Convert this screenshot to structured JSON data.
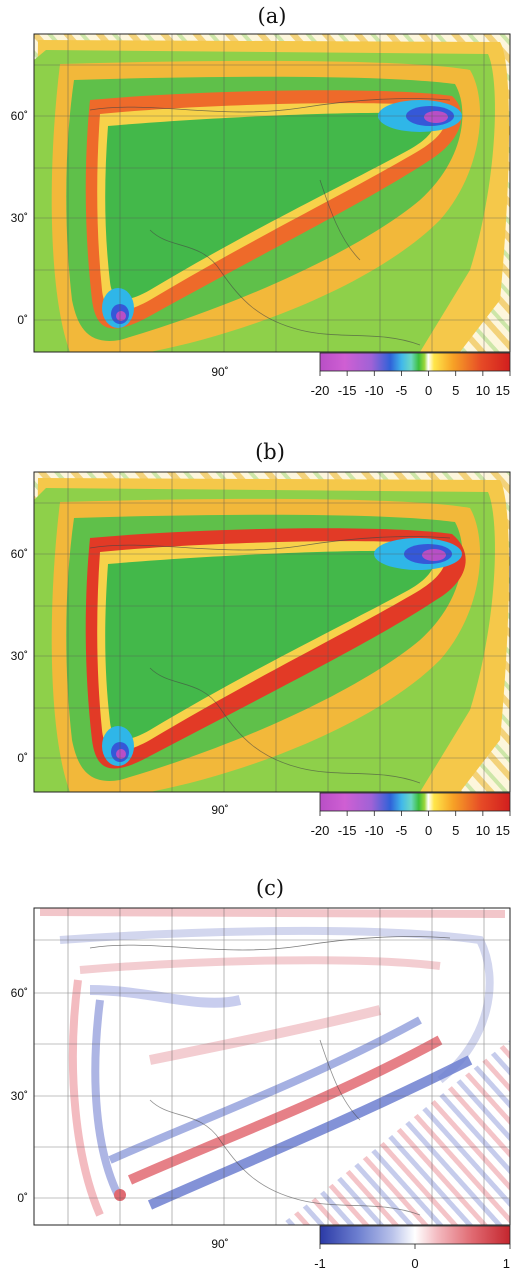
{
  "chart_data": [
    {
      "type": "heatmap",
      "title": "(a)",
      "lat_ticks": [
        "60˚",
        "30˚",
        "0˚"
      ],
      "lon_ticks": [
        "90˚"
      ],
      "colorbar": {
        "ticks": [
          "-20",
          "-15",
          "-10",
          "-5",
          "0",
          "5",
          "10",
          "15"
        ],
        "range": [
          -20,
          15
        ],
        "colors": [
          "#b84fc6",
          "#cf5fd3",
          "#9a63d8",
          "#2f62d8",
          "#41b8ea",
          "#6bd8c4",
          "#3cbf3c",
          "#9bd63a",
          "#ffffff",
          "#ffe64a",
          "#f7a226",
          "#e64a26",
          "#d21e1e"
        ]
      },
      "features": [
        {
          "name": "minimum",
          "lat": 60,
          "lon": 139,
          "value": -20
        },
        {
          "name": "minimum",
          "lat": 0,
          "lon": 75,
          "value": -20
        }
      ]
    },
    {
      "type": "heatmap",
      "title": "(b)",
      "lat_ticks": [
        "60˚",
        "30˚",
        "0˚"
      ],
      "lon_ticks": [
        "90˚"
      ],
      "colorbar": {
        "ticks": [
          "-20",
          "-15",
          "-10",
          "-5",
          "0",
          "5",
          "10",
          "15"
        ],
        "range": [
          -20,
          15
        ],
        "colors": [
          "#b84fc6",
          "#cf5fd3",
          "#9a63d8",
          "#2f62d8",
          "#41b8ea",
          "#6bd8c4",
          "#3cbf3c",
          "#9bd63a",
          "#ffffff",
          "#ffe64a",
          "#f7a226",
          "#e64a26",
          "#d21e1e"
        ]
      },
      "features": [
        {
          "name": "minimum",
          "lat": 60,
          "lon": 137,
          "value": -20
        },
        {
          "name": "minimum",
          "lat": 0,
          "lon": 75,
          "value": -20
        }
      ]
    },
    {
      "type": "heatmap",
      "title": "(c)",
      "lat_ticks": [
        "60˚",
        "30˚",
        "0˚"
      ],
      "lon_ticks": [
        "90˚"
      ],
      "colorbar": {
        "ticks": [
          "-1",
          "0",
          "1"
        ],
        "range": [
          -1,
          1
        ],
        "colors": [
          "#2b3aa6",
          "#6d7fd0",
          "#b9c2ea",
          "#ffffff",
          "#f3b9bf",
          "#e06a72",
          "#c4262e"
        ]
      }
    }
  ]
}
